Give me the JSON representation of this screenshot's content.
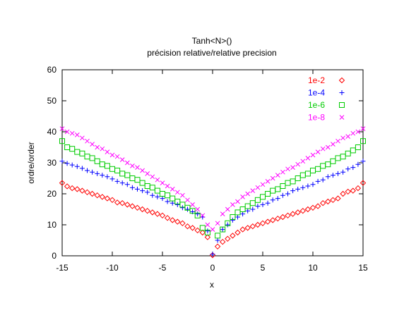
{
  "chart_data": {
    "type": "scatter",
    "title": "Tanh<N>()",
    "subtitle": "précision relative/relative precision",
    "xlabel": "x",
    "ylabel": "ordre/order",
    "xlim": [
      -15,
      15
    ],
    "ylim": [
      0,
      60
    ],
    "x_ticks": [
      -15,
      -10,
      -5,
      0,
      5,
      10,
      15
    ],
    "y_ticks": [
      0,
      10,
      20,
      30,
      40,
      50,
      60
    ],
    "grid": false,
    "legend_position": "top-right",
    "series": [
      {
        "name": "1e-2",
        "marker": "diamond",
        "color": "#ff0000",
        "x": [
          -15,
          -14.5,
          -14,
          -13.5,
          -13,
          -12.5,
          -12,
          -11.5,
          -11,
          -10.5,
          -10,
          -9.5,
          -9,
          -8.5,
          -8,
          -7.5,
          -7,
          -6.5,
          -6,
          -5.5,
          -5,
          -4.5,
          -4,
          -3.5,
          -3,
          -2.5,
          -2,
          -1.5,
          -1,
          -0.5,
          0,
          0.5,
          1,
          1.5,
          2,
          2.5,
          3,
          3.5,
          4,
          4.5,
          5,
          5.5,
          6,
          6.5,
          7,
          7.5,
          8,
          8.5,
          9,
          9.5,
          10,
          10.5,
          11,
          11.5,
          12,
          12.5,
          13,
          13.5,
          14,
          14.5,
          15
        ],
        "y": [
          23.5,
          22.4,
          21.8,
          21.5,
          21.0,
          20.5,
          20.0,
          19.5,
          19.0,
          18.5,
          18.0,
          17.2,
          17.0,
          16.5,
          16.0,
          15.5,
          15.0,
          14.5,
          14.0,
          13.5,
          13.0,
          12.2,
          11.5,
          11.0,
          10.5,
          9.5,
          9.0,
          8.2,
          7.5,
          6.0,
          0.2,
          3.0,
          4.5,
          5.5,
          6.5,
          7.5,
          8.5,
          9.0,
          9.5,
          10.0,
          10.5,
          11.0,
          11.5,
          12.0,
          12.5,
          13.0,
          13.5,
          14.0,
          14.5,
          15.0,
          15.5,
          16.0,
          17.0,
          17.5,
          18.0,
          18.5,
          20.0,
          20.7,
          21.0,
          21.8,
          23.5
        ]
      },
      {
        "name": "1e-4",
        "marker": "plus",
        "color": "#0000ff",
        "x": [
          -15,
          -14.5,
          -14,
          -13.5,
          -13,
          -12.5,
          -12,
          -11.5,
          -11,
          -10.5,
          -10,
          -9.5,
          -9,
          -8.5,
          -8,
          -7.5,
          -7,
          -6.5,
          -6,
          -5.5,
          -5,
          -4.5,
          -4,
          -3.5,
          -3,
          -2.5,
          -2,
          -1.5,
          -1,
          -0.5,
          0,
          0.5,
          1,
          1.5,
          2,
          2.5,
          3,
          3.5,
          4,
          4.5,
          5,
          5.5,
          6,
          6.5,
          7,
          7.5,
          8,
          8.5,
          9,
          9.5,
          10,
          10.5,
          11,
          11.5,
          12,
          12.5,
          13,
          13.5,
          14,
          14.5,
          15
        ],
        "y": [
          30.5,
          29.8,
          29.3,
          28.8,
          28.2,
          27.5,
          27.0,
          26.5,
          26.0,
          25.5,
          24.8,
          24.0,
          23.5,
          23.0,
          22.0,
          21.5,
          21.0,
          20.5,
          19.5,
          19.0,
          18.5,
          17.5,
          17.0,
          16.5,
          15.5,
          15.0,
          14.2,
          13.5,
          12.5,
          8.0,
          0.5,
          5.0,
          8.5,
          10.0,
          11.5,
          12.5,
          13.5,
          14.5,
          15.0,
          16.0,
          16.5,
          17.0,
          18.0,
          18.5,
          19.5,
          20.0,
          21.0,
          21.5,
          22.0,
          22.5,
          23.0,
          24.0,
          24.5,
          25.5,
          26.0,
          26.5,
          27.0,
          28.0,
          28.5,
          29.5,
          30.5
        ]
      },
      {
        "name": "1e-6",
        "marker": "square",
        "color": "#00cc00",
        "x": [
          -15,
          -14.5,
          -14,
          -13.5,
          -13,
          -12.5,
          -12,
          -11.5,
          -11,
          -10.5,
          -10,
          -9.5,
          -9,
          -8.5,
          -8,
          -7.5,
          -7,
          -6.5,
          -6,
          -5.5,
          -5,
          -4.5,
          -4,
          -3.5,
          -3,
          -2.5,
          -2,
          -1.5,
          -1,
          -0.5,
          0.5,
          1,
          1.5,
          2,
          2.5,
          3,
          3.5,
          4,
          4.5,
          5,
          5.5,
          6,
          6.5,
          7,
          7.5,
          8,
          8.5,
          9,
          9.5,
          10,
          10.5,
          11,
          11.5,
          12,
          12.5,
          13,
          13.5,
          14,
          14.5,
          15
        ],
        "y": [
          37.0,
          35.0,
          34.5,
          33.5,
          33.0,
          32.0,
          31.5,
          30.5,
          29.5,
          29.0,
          28.0,
          27.5,
          26.5,
          26.0,
          25.0,
          24.5,
          23.5,
          22.5,
          22.0,
          21.0,
          20.0,
          19.5,
          18.5,
          17.5,
          16.5,
          15.5,
          14.5,
          13.0,
          9.0,
          7.5,
          6.5,
          8.5,
          10.5,
          12.5,
          14.0,
          15.0,
          16.0,
          17.0,
          18.0,
          19.0,
          20.0,
          21.0,
          21.5,
          22.5,
          23.5,
          24.0,
          25.0,
          26.0,
          26.5,
          27.5,
          28.0,
          29.0,
          29.5,
          30.5,
          31.5,
          32.0,
          33.0,
          34.0,
          35.0,
          37.0
        ]
      },
      {
        "name": "1e-8",
        "marker": "cross",
        "color": "#ff00ff",
        "x": [
          -15,
          -14.5,
          -14,
          -13.5,
          -13,
          -12.5,
          -12,
          -11.5,
          -11,
          -10.5,
          -10,
          -9.5,
          -9,
          -8.5,
          -8,
          -7.5,
          -7,
          -6.5,
          -6,
          -5.5,
          -5,
          -4.5,
          -4,
          -3.5,
          -3,
          -2.5,
          -2,
          -1.5,
          -1,
          -0.5,
          0,
          0.5,
          1,
          1.5,
          2,
          2.5,
          3,
          3.5,
          4,
          4.5,
          5,
          5.5,
          6,
          6.5,
          7,
          7.5,
          8,
          8.5,
          9,
          9.5,
          10,
          10.5,
          11,
          11.5,
          12,
          12.5,
          13,
          13.5,
          14,
          14.5,
          15
        ],
        "y": [
          41.0,
          40.0,
          39.5,
          39.0,
          38.0,
          37.0,
          36.0,
          35.0,
          34.5,
          33.5,
          32.5,
          32.0,
          31.0,
          30.0,
          29.0,
          28.5,
          27.5,
          26.5,
          25.5,
          24.5,
          23.5,
          22.5,
          21.5,
          20.5,
          19.5,
          18.0,
          16.5,
          15.0,
          13.0,
          10.0,
          8.5,
          10.5,
          13.5,
          15.0,
          16.5,
          17.5,
          19.0,
          20.0,
          21.0,
          22.0,
          23.0,
          24.0,
          25.0,
          26.0,
          27.0,
          28.0,
          28.5,
          29.5,
          30.5,
          31.5,
          32.5,
          33.5,
          34.5,
          35.0,
          36.0,
          37.0,
          38.0,
          38.5,
          39.5,
          40.0,
          41.0
        ]
      }
    ]
  }
}
